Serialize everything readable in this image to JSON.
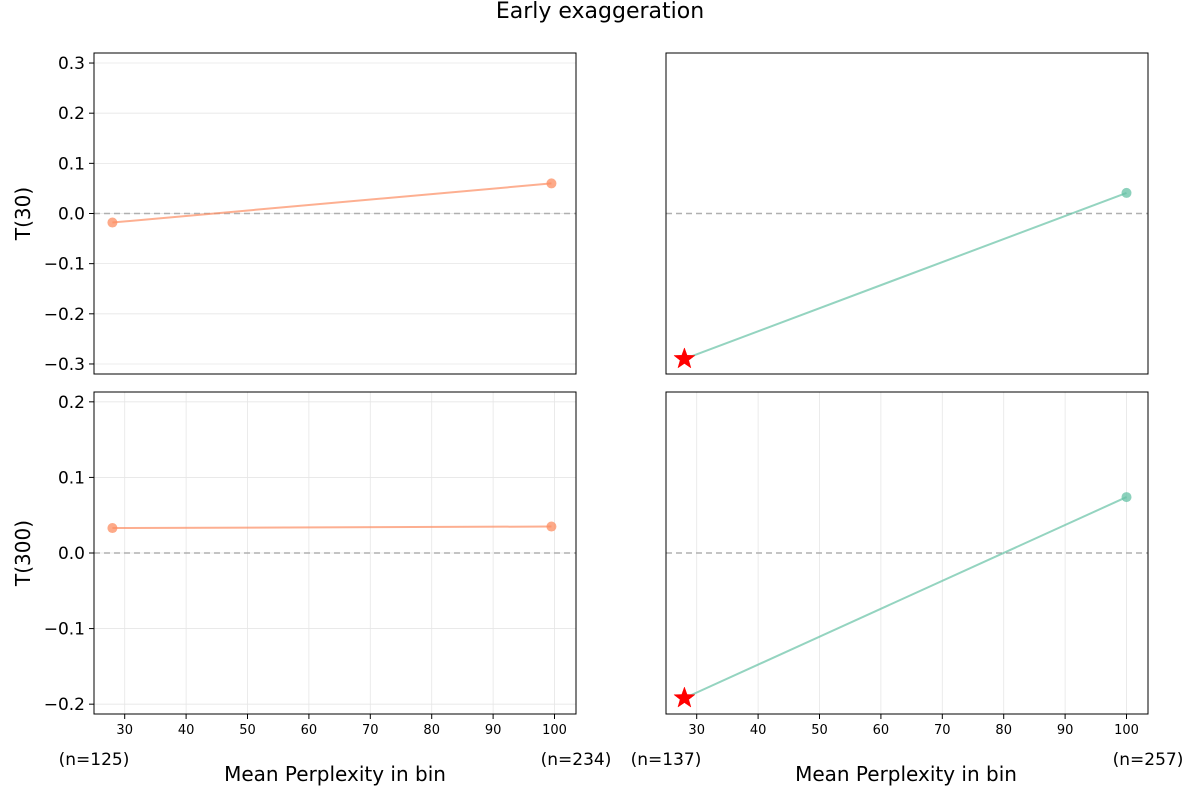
{
  "figure": {
    "title": "Early exaggeration",
    "xlabels": [
      "Mean Perplexity in bin",
      "Mean Perplexity in bin"
    ],
    "counts": [
      "(n=125)",
      "(n=234)",
      "(n=137)",
      "(n=257)"
    ]
  },
  "colors": {
    "left_series": "#fc8d62",
    "right_series": "#66c2a5",
    "star": "#ff0000",
    "zero_line": "#b0b0b0"
  },
  "chart_data": [
    {
      "type": "line",
      "panel": "top-left",
      "ylabel": "T(30)",
      "x": [
        28,
        99.5
      ],
      "y": [
        -0.018,
        0.06
      ],
      "xlim": [
        25,
        103.5
      ],
      "ylim": [
        -0.32,
        0.32
      ],
      "yticks": [
        -0.3,
        -0.2,
        -0.1,
        0.0,
        0.1,
        0.2,
        0.3
      ],
      "ytick_labels": [
        "−0.3",
        "−0.2",
        "−0.1",
        "0.0",
        "0.1",
        "0.2",
        "0.3"
      ],
      "xticks": [],
      "xtick_labels": [],
      "color_key": "left_series",
      "star_points": [],
      "grid": true
    },
    {
      "type": "line",
      "panel": "top-right",
      "ylabel": "",
      "x": [
        28,
        100
      ],
      "y": [
        -0.29,
        0.041
      ],
      "xlim": [
        25,
        103.5
      ],
      "ylim": [
        -0.32,
        0.32
      ],
      "yticks": [],
      "ytick_labels": [],
      "xticks": [],
      "xtick_labels": [],
      "color_key": "right_series",
      "star_points": [
        0
      ],
      "grid": false
    },
    {
      "type": "line",
      "panel": "bottom-left",
      "ylabel": "T(300)",
      "x": [
        28,
        99.5
      ],
      "y": [
        0.033,
        0.035
      ],
      "xlim": [
        25,
        103.5
      ],
      "ylim": [
        -0.213,
        0.213
      ],
      "yticks": [
        -0.2,
        -0.1,
        0.0,
        0.1,
        0.2
      ],
      "ytick_labels": [
        "−0.2",
        "−0.1",
        "0.0",
        "0.1",
        "0.2"
      ],
      "xticks": [
        30,
        40,
        50,
        60,
        70,
        80,
        90,
        100
      ],
      "xtick_labels": [
        "30",
        "40",
        "50",
        "60",
        "70",
        "80",
        "90",
        "100"
      ],
      "color_key": "left_series",
      "star_points": [],
      "grid": true
    },
    {
      "type": "line",
      "panel": "bottom-right",
      "ylabel": "",
      "x": [
        28,
        100
      ],
      "y": [
        -0.192,
        0.074
      ],
      "xlim": [
        25,
        103.5
      ],
      "ylim": [
        -0.213,
        0.213
      ],
      "yticks": [],
      "ytick_labels": [],
      "xticks": [
        30,
        40,
        50,
        60,
        70,
        80,
        90,
        100
      ],
      "xtick_labels": [
        "30",
        "40",
        "50",
        "60",
        "70",
        "80",
        "90",
        "100"
      ],
      "color_key": "right_series",
      "star_points": [
        0
      ],
      "grid": true
    }
  ]
}
